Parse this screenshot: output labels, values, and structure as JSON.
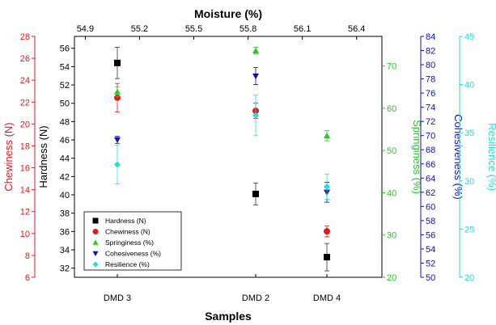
{
  "chart_data": {
    "type": "scatter",
    "categories": [
      "DMD 3",
      "DMD 2",
      "DMD 4"
    ],
    "x_title": "Samples",
    "top_axis": {
      "title": "Moisture (%)",
      "ticks": [
        "54.9",
        "55.2",
        "55.5",
        "55.8",
        "56.1",
        "56.4"
      ],
      "values": [
        54.9,
        55.2,
        55.5,
        55.8,
        56.1,
        56.4
      ],
      "range": [
        54.84,
        56.54
      ]
    },
    "axes": [
      {
        "key": "chewiness",
        "title": "Chewiness (N)",
        "color": "#e31a1c",
        "ticks": [
          "6",
          "8",
          "10",
          "12",
          "14",
          "16",
          "18",
          "20",
          "22",
          "24",
          "26",
          "28"
        ],
        "range": [
          6,
          28
        ]
      },
      {
        "key": "hardness",
        "title": "Hardness (N)",
        "color": "#000000",
        "ticks": [
          "32",
          "34",
          "36",
          "38",
          "40",
          "42",
          "44",
          "46",
          "48",
          "50",
          "52",
          "54",
          "56"
        ],
        "range": [
          31,
          57.3
        ]
      },
      {
        "key": "springiness",
        "title": "Springiness (%)",
        "color": "#22cc22",
        "ticks": [
          "20",
          "30",
          "40",
          "50",
          "60",
          "70"
        ],
        "range": [
          20,
          77
        ]
      },
      {
        "key": "cohesiveness",
        "title": "Cohesiveness (%)",
        "color": "#1010aa",
        "ticks": [
          "50",
          "52",
          "54",
          "56",
          "58",
          "60",
          "62",
          "64",
          "66",
          "68",
          "70",
          "72",
          "74",
          "76",
          "78",
          "80",
          "82",
          "84"
        ],
        "range": [
          50,
          84
        ]
      },
      {
        "key": "resilience",
        "title": "Resilience (%)",
        "color": "#22dddd",
        "ticks": [
          "20",
          "25",
          "30",
          "35",
          "40",
          "45"
        ],
        "range": [
          20,
          45
        ]
      }
    ],
    "series": [
      {
        "name": "Hardness (N)",
        "axis": "hardness",
        "marker": "square",
        "color": "#000000",
        "values": [
          54.4,
          40.1,
          33.2
        ],
        "errors": [
          1.7,
          1.2,
          1.5
        ]
      },
      {
        "name": "Chewiness (N)",
        "axis": "chewiness",
        "marker": "circle",
        "color": "#e31a1c",
        "values": [
          22.4,
          21.2,
          10.2
        ],
        "errors": [
          1.3,
          0.7,
          0.5
        ]
      },
      {
        "name": "Springiness (%)",
        "axis": "springiness",
        "marker": "triangle-up",
        "color": "#22cc22",
        "values": [
          63.9,
          73.6,
          53.5
        ],
        "errors": [
          1.2,
          0.8,
          1.2
        ]
      },
      {
        "name": "Cohesiveness (%)",
        "axis": "cohesiveness",
        "marker": "triangle-down",
        "color": "#1010aa",
        "values": [
          69.4,
          78.4,
          62.0
        ],
        "errors": [
          0.5,
          1.2,
          1.4
        ]
      },
      {
        "name": "Resilience (%)",
        "axis": "resilience",
        "marker": "diamond",
        "color": "#22dddd",
        "values": [
          31.7,
          36.8,
          29.4
        ],
        "errors": [
          2.0,
          2.1,
          1.3
        ]
      }
    ],
    "legend_position": "bottom-left",
    "grid": false
  }
}
